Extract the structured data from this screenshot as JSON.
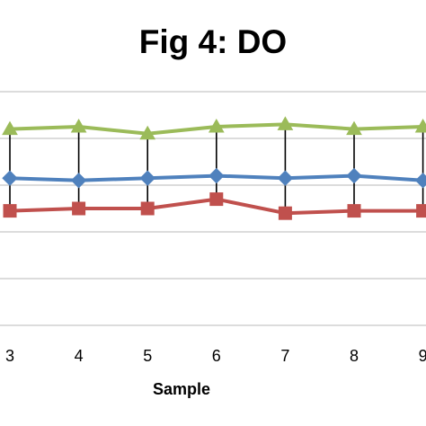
{
  "chart_data": {
    "type": "line",
    "title": "Fig 4: DO",
    "xlabel": "Sample",
    "ylabel": "",
    "categories": [
      "3",
      "4",
      "5",
      "6",
      "7",
      "8",
      "9"
    ],
    "ylim": [
      0,
      10
    ],
    "grid": true,
    "series": [
      {
        "marker": "triangle",
        "color": "#9bbb59",
        "values": [
          8.4,
          8.5,
          8.2,
          8.5,
          8.6,
          8.4,
          8.5
        ]
      },
      {
        "marker": "diamond",
        "color": "#4f81bd",
        "values": [
          6.3,
          6.2,
          6.3,
          6.4,
          6.3,
          6.4,
          6.2
        ]
      },
      {
        "marker": "square",
        "color": "#c0504d",
        "values": [
          4.9,
          5.0,
          5.0,
          5.4,
          4.8,
          4.9,
          4.9
        ]
      }
    ],
    "high_low_lines": {
      "color": "#000000"
    }
  }
}
